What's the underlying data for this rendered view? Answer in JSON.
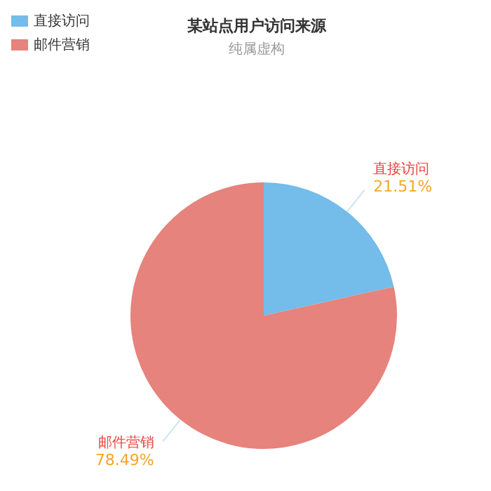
{
  "chart_data": {
    "type": "pie",
    "title": "某站点用户访问来源",
    "subtitle": "纯属虚构",
    "categories": [
      "直接访问",
      "邮件营销"
    ],
    "values": [
      21.51,
      78.49
    ],
    "colors": [
      "#74bce9",
      "#e5837c"
    ],
    "value_labels": [
      "21.51%",
      "78.49%"
    ],
    "legend": "top left"
  }
}
